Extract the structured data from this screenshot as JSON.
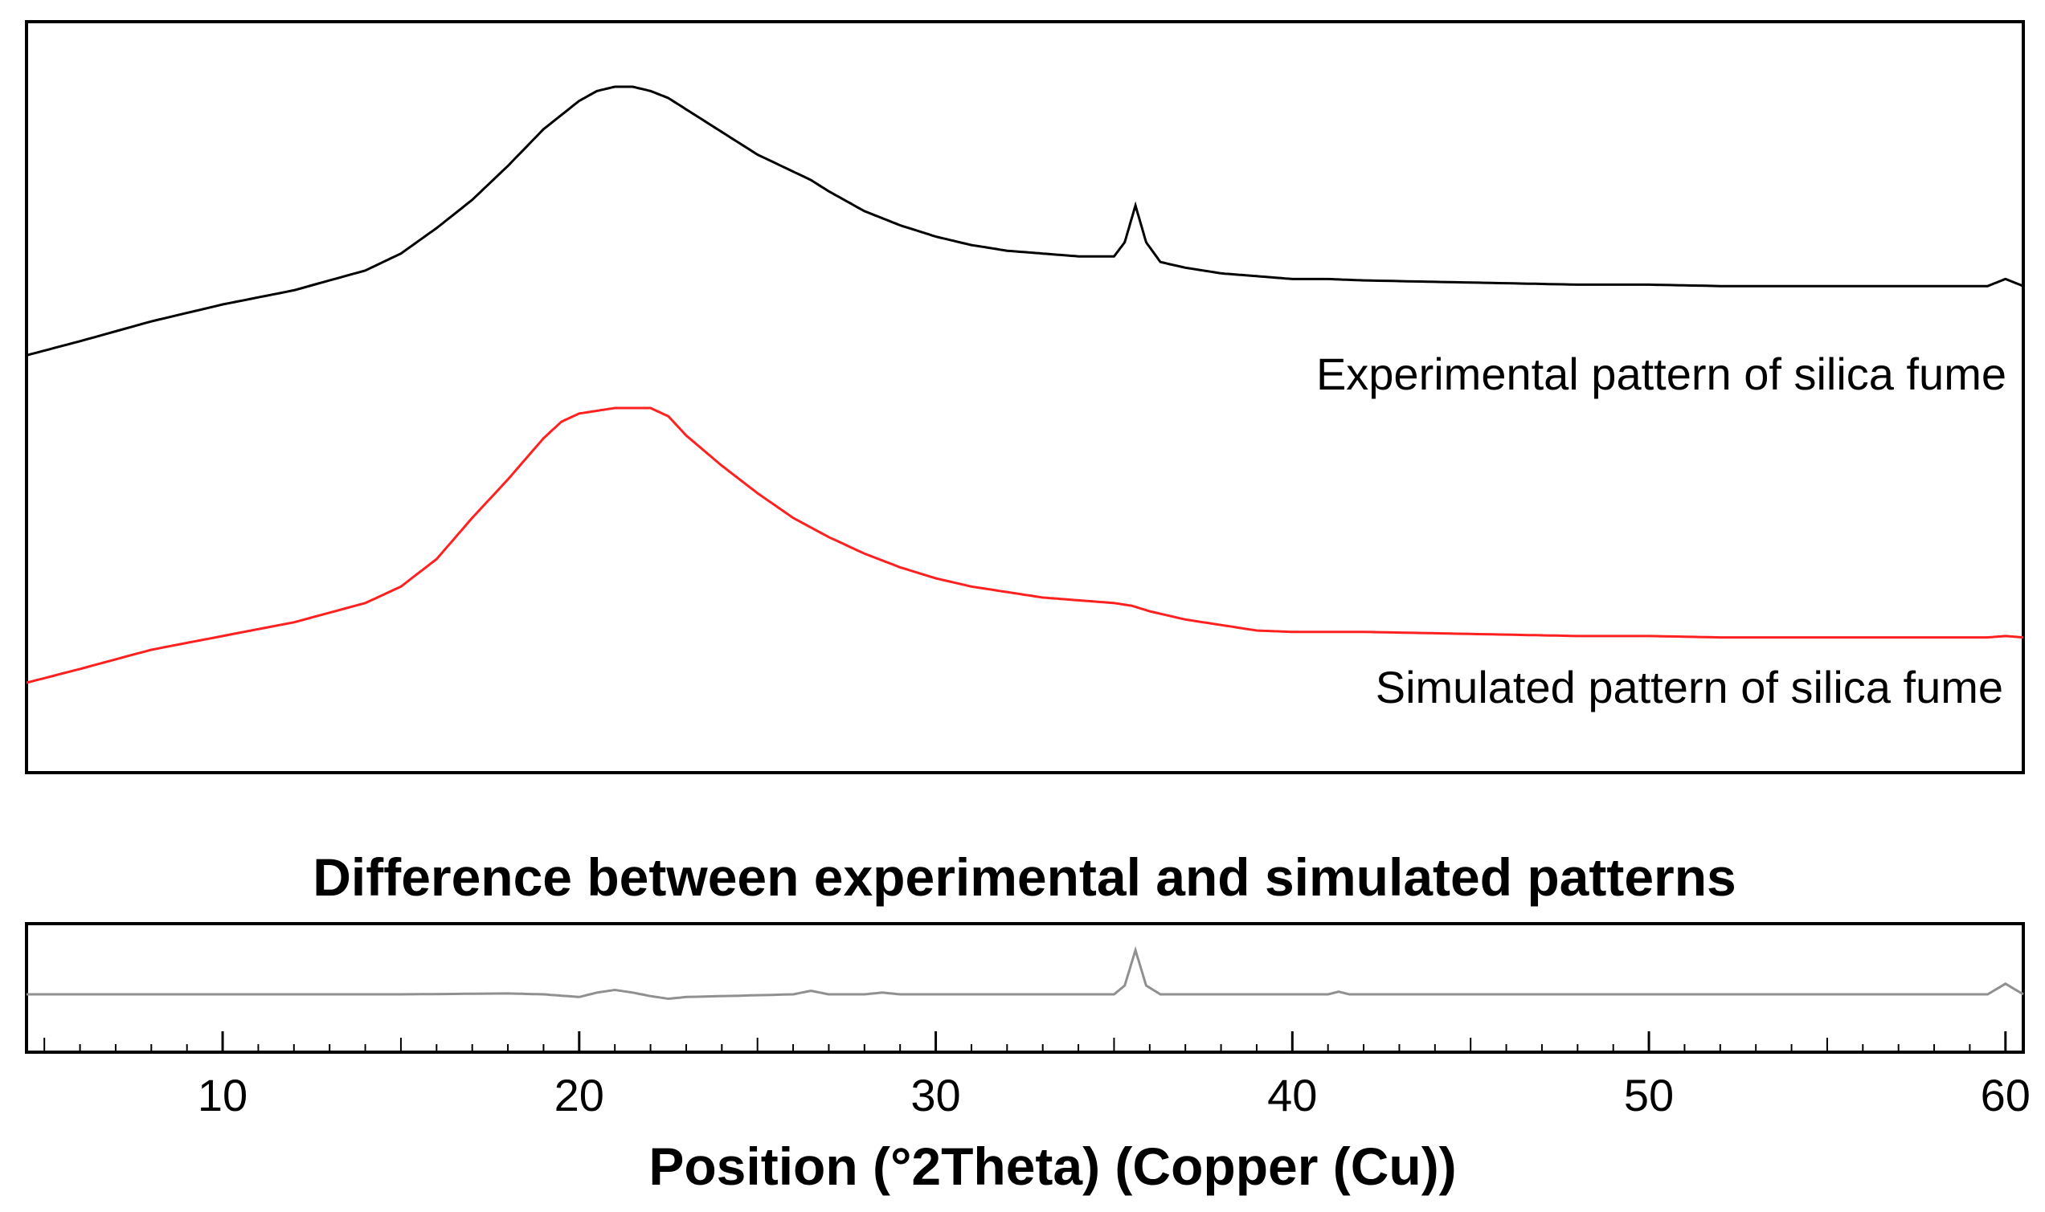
{
  "chart_data": {
    "type": "line",
    "x_title": "Position (°2Theta) (Copper (Cu))",
    "xlim": [
      4.5,
      60.5
    ],
    "x_ticks": [
      10,
      20,
      30,
      40,
      50,
      60
    ],
    "top_panel": {
      "series": [
        {
          "name": "Experimental pattern of silica fume",
          "color": "#000000",
          "x": [
            4.5,
            6,
            8,
            10,
            12,
            14,
            15,
            16,
            17,
            18,
            19,
            20,
            20.5,
            21,
            21.5,
            22,
            22.5,
            23,
            24,
            25,
            26,
            26.5,
            27,
            28,
            29,
            30,
            31,
            32,
            33,
            34,
            35,
            35.3,
            35.6,
            35.9,
            36.3,
            37,
            38,
            39,
            40,
            41,
            42,
            44,
            46,
            48,
            50,
            52,
            54,
            56,
            58,
            59.5,
            60,
            60.5
          ],
          "y": [
            0.05,
            0.1,
            0.17,
            0.23,
            0.28,
            0.35,
            0.41,
            0.5,
            0.6,
            0.72,
            0.85,
            0.95,
            0.985,
            1.0,
            1.0,
            0.985,
            0.96,
            0.92,
            0.84,
            0.76,
            0.7,
            0.67,
            0.63,
            0.56,
            0.51,
            0.47,
            0.44,
            0.42,
            0.41,
            0.4,
            0.4,
            0.45,
            0.58,
            0.45,
            0.38,
            0.36,
            0.34,
            0.33,
            0.32,
            0.32,
            0.315,
            0.31,
            0.305,
            0.3,
            0.3,
            0.295,
            0.295,
            0.295,
            0.295,
            0.295,
            0.32,
            0.295
          ]
        },
        {
          "name": "Simulated pattern of silica fume",
          "color": "#ff2020",
          "x": [
            4.5,
            6,
            8,
            10,
            12,
            14,
            15,
            16,
            17,
            18,
            19,
            19.5,
            20,
            20.5,
            21,
            21.5,
            22,
            22.5,
            23,
            24,
            25,
            26,
            27,
            28,
            29,
            30,
            31,
            32,
            33,
            34,
            35,
            35.5,
            36,
            37,
            38,
            39,
            40,
            42,
            44,
            46,
            48,
            50,
            52,
            54,
            56,
            58,
            59.5,
            60,
            60.5
          ],
          "y": [
            0.0,
            0.05,
            0.12,
            0.17,
            0.22,
            0.29,
            0.35,
            0.45,
            0.6,
            0.74,
            0.89,
            0.95,
            0.98,
            0.99,
            1.0,
            1.0,
            1.0,
            0.97,
            0.9,
            0.79,
            0.69,
            0.6,
            0.53,
            0.47,
            0.42,
            0.38,
            0.35,
            0.33,
            0.31,
            0.3,
            0.29,
            0.28,
            0.26,
            0.23,
            0.21,
            0.19,
            0.185,
            0.185,
            0.18,
            0.175,
            0.17,
            0.17,
            0.165,
            0.165,
            0.165,
            0.165,
            0.165,
            0.17,
            0.165
          ]
        }
      ]
    },
    "bottom_panel": {
      "title": "Difference between experimental and simulated patterns",
      "series": [
        {
          "name": "Difference",
          "color": "#909090",
          "x": [
            4.5,
            10,
            15,
            18,
            19,
            20,
            20.5,
            21,
            21.5,
            22,
            22.5,
            23,
            26,
            26.5,
            27,
            28,
            28.5,
            29,
            35,
            35.3,
            35.6,
            35.9,
            36.3,
            41,
            41.3,
            41.6,
            50,
            59.5,
            60,
            60.5
          ],
          "y": [
            0.0,
            0.0,
            0.0,
            0.01,
            0.0,
            -0.03,
            0.02,
            0.05,
            0.02,
            -0.02,
            -0.05,
            -0.03,
            0.0,
            0.04,
            0.0,
            0.0,
            0.02,
            0.0,
            0.0,
            0.1,
            0.5,
            0.1,
            0.0,
            0.0,
            0.03,
            0.0,
            0.0,
            0.0,
            0.12,
            0.0
          ]
        }
      ]
    }
  }
}
